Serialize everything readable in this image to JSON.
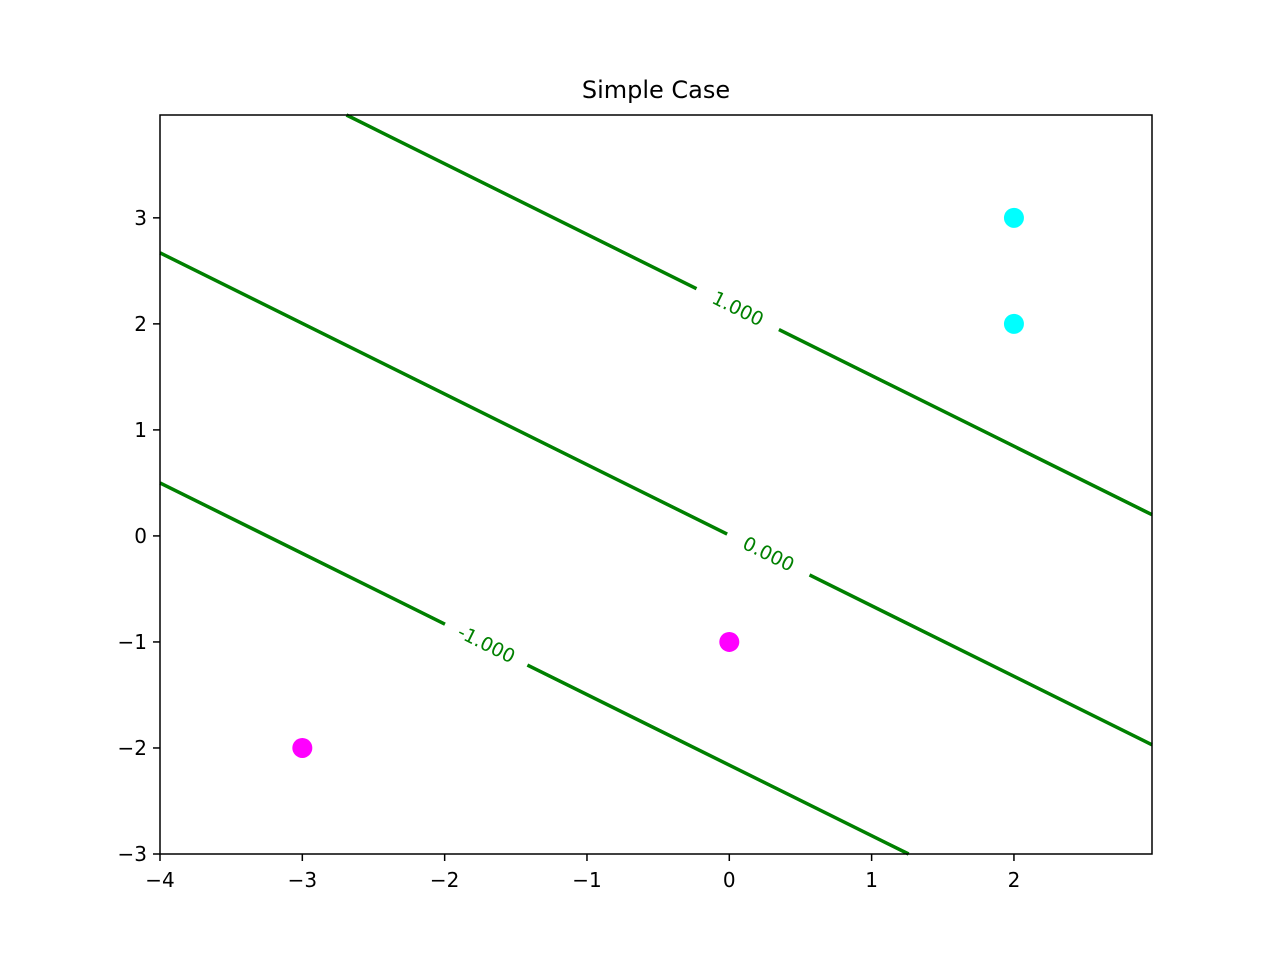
{
  "chart_data": {
    "type": "scatter",
    "title": "Simple Case",
    "xlabel": "",
    "ylabel": "",
    "xlim": [
      -4,
      2.97
    ],
    "ylim": [
      -3,
      3.97
    ],
    "xticks": [
      -4,
      -3,
      -2,
      -1,
      0,
      1,
      2
    ],
    "yticks": [
      -3,
      -2,
      -1,
      0,
      1,
      2,
      3
    ],
    "xtick_labels": [
      "−4",
      "−3",
      "−2",
      "−1",
      "0",
      "1",
      "2"
    ],
    "ytick_labels": [
      "−3",
      "−2",
      "−1",
      "0",
      "1",
      "2",
      "3"
    ],
    "grid": false,
    "contour_color": "#008000",
    "contour_levels": [
      {
        "level": 1.0,
        "label": "1.000",
        "points": [
          [
            -2.69,
            3.97
          ],
          [
            2.97,
            0.2
          ]
        ],
        "label_at": [
          0.03,
          2.06
        ]
      },
      {
        "level": 0.0,
        "label": "0.000",
        "points": [
          [
            -4.0,
            2.67
          ],
          [
            2.97,
            -1.97
          ]
        ],
        "label_at": [
          0.28,
          -0.16
        ]
      },
      {
        "level": -1.0,
        "label": "-1.000",
        "points": [
          [
            -4.0,
            0.5
          ],
          [
            1.26,
            -3.0
          ]
        ],
        "label_at": [
          -1.71,
          -1.03
        ]
      }
    ],
    "series": [
      {
        "color": "#00ffff",
        "points": [
          [
            2,
            3
          ],
          [
            2,
            2
          ]
        ]
      },
      {
        "color": "#ff00ff",
        "points": [
          [
            0,
            -1
          ],
          [
            -3,
            -2
          ]
        ]
      }
    ]
  }
}
